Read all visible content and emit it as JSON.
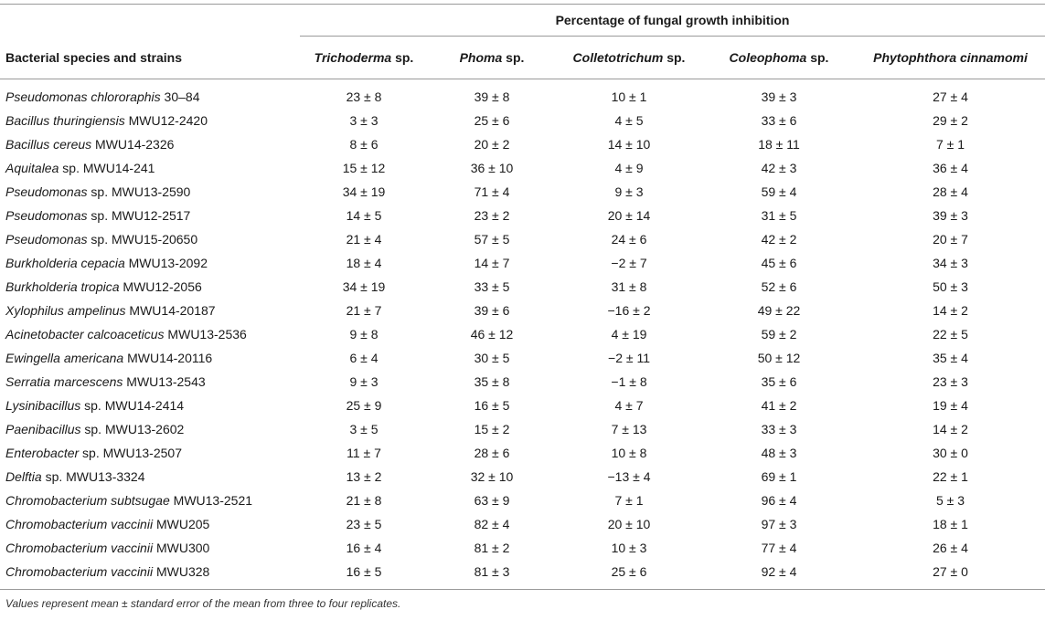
{
  "table": {
    "group_header": "Percentage of fungal growth inhibition",
    "row_header": "Bacterial species and strains",
    "columns": [
      {
        "italic": "Trichoderma",
        "rest": " sp."
      },
      {
        "italic": "Phoma",
        "rest": " sp."
      },
      {
        "italic": "Colletotrichum",
        "rest": " sp."
      },
      {
        "italic": "Coleophoma",
        "rest": " sp."
      },
      {
        "italic": "Phytophthora cinnamomi",
        "rest": ""
      }
    ],
    "rows": [
      {
        "species": "Pseudomonas chlororaphis",
        "strain": " 30–84",
        "values": [
          "23 ± 8",
          "39 ± 8",
          "10 ± 1",
          "39 ± 3",
          "27 ± 4"
        ]
      },
      {
        "species": "Bacillus thuringiensis",
        "strain": " MWU12-2420",
        "values": [
          "3 ± 3",
          "25 ± 6",
          "4 ± 5",
          "33 ± 6",
          "29 ± 2"
        ]
      },
      {
        "species": "Bacillus cereus",
        "strain": " MWU14-2326",
        "values": [
          "8 ± 6",
          "20 ± 2",
          "14 ± 10",
          "18 ± 11",
          "7 ± 1"
        ]
      },
      {
        "species": "Aquitalea",
        "strain": " sp. MWU14-241",
        "values": [
          "15 ± 12",
          "36 ± 10",
          "4 ± 9",
          "42 ± 3",
          "36 ± 4"
        ]
      },
      {
        "species": "Pseudomonas",
        "strain": " sp. MWU13-2590",
        "values": [
          "34 ± 19",
          "71 ± 4",
          "9 ± 3",
          "59 ± 4",
          "28 ± 4"
        ]
      },
      {
        "species": "Pseudomonas",
        "strain": " sp. MWU12-2517",
        "values": [
          "14 ± 5",
          "23 ± 2",
          "20 ± 14",
          "31 ± 5",
          "39 ± 3"
        ]
      },
      {
        "species": "Pseudomonas",
        "strain": " sp. MWU15-20650",
        "values": [
          "21 ± 4",
          "57 ± 5",
          "24 ± 6",
          "42 ± 2",
          "20 ± 7"
        ]
      },
      {
        "species": "Burkholderia cepacia",
        "strain": " MWU13-2092",
        "values": [
          "18 ± 4",
          "14 ± 7",
          "−2 ± 7",
          "45 ± 6",
          "34 ± 3"
        ]
      },
      {
        "species": "Burkholderia tropica",
        "strain": " MWU12-2056",
        "values": [
          "34 ± 19",
          "33 ± 5",
          "31 ± 8",
          "52 ± 6",
          "50 ± 3"
        ]
      },
      {
        "species": "Xylophilus ampelinus",
        "strain": " MWU14-20187",
        "values": [
          "21 ± 7",
          "39 ± 6",
          "−16 ± 2",
          "49 ± 22",
          "14 ± 2"
        ]
      },
      {
        "species": "Acinetobacter calcoaceticus",
        "strain": " MWU13-2536",
        "values": [
          "9 ± 8",
          "46 ± 12",
          "4 ± 19",
          "59 ± 2",
          "22 ± 5"
        ]
      },
      {
        "species": "Ewingella americana",
        "strain": " MWU14-20116",
        "values": [
          "6 ± 4",
          "30 ± 5",
          "−2 ± 11",
          "50 ± 12",
          "35 ± 4"
        ]
      },
      {
        "species": "Serratia marcescens",
        "strain": " MWU13-2543",
        "values": [
          "9 ± 3",
          "35 ± 8",
          "−1 ± 8",
          "35 ± 6",
          "23 ± 3"
        ]
      },
      {
        "species": "Lysinibacillus",
        "strain": " sp. MWU14-2414",
        "values": [
          "25 ± 9",
          "16 ± 5",
          "4 ± 7",
          "41 ± 2",
          "19 ± 4"
        ]
      },
      {
        "species": "Paenibacillus",
        "strain": " sp. MWU13-2602",
        "values": [
          "3 ± 5",
          "15 ± 2",
          "7 ± 13",
          "33 ± 3",
          "14 ± 2"
        ]
      },
      {
        "species": "Enterobacter",
        "strain": " sp. MWU13-2507",
        "values": [
          "11 ± 7",
          "28 ± 6",
          "10 ± 8",
          "48 ± 3",
          "30 ± 0"
        ]
      },
      {
        "species": "Delftia",
        "strain": " sp. MWU13-3324",
        "values": [
          "13 ± 2",
          "32 ± 10",
          "−13 ± 4",
          "69 ± 1",
          "22 ± 1"
        ]
      },
      {
        "species": "Chromobacterium subtsugae",
        "strain": " MWU13-2521",
        "values": [
          "21 ± 8",
          "63 ± 9",
          "7 ± 1",
          "96 ± 4",
          "5 ± 3"
        ]
      },
      {
        "species": "Chromobacterium vaccinii",
        "strain": " MWU205",
        "values": [
          "23 ± 5",
          "82 ± 4",
          "20 ± 10",
          "97 ± 3",
          "18 ± 1"
        ]
      },
      {
        "species": "Chromobacterium vaccinii",
        "strain": " MWU300",
        "values": [
          "16 ± 4",
          "81 ± 2",
          "10 ± 3",
          "77 ± 4",
          "26 ± 4"
        ]
      },
      {
        "species": "Chromobacterium vaccinii",
        "strain": " MWU328",
        "values": [
          "16 ± 5",
          "81 ± 3",
          "25 ± 6",
          "92 ± 4",
          "27 ± 0"
        ]
      }
    ],
    "footnote": "Values represent mean ± standard error of the mean from three to four replicates."
  }
}
